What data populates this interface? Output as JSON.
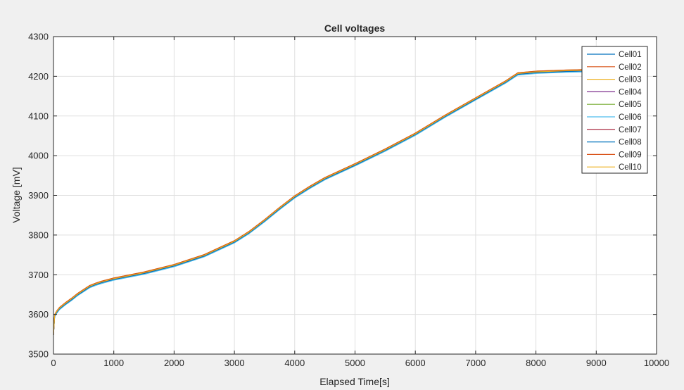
{
  "chart_data": {
    "type": "line",
    "title": "Cell voltages",
    "xlabel": "Elapsed Time[s]",
    "ylabel": "Voltage [mV]",
    "xlim": [
      0,
      10000
    ],
    "ylim": [
      3500,
      4300
    ],
    "xticks": [
      "0",
      "1000",
      "2000",
      "3000",
      "4000",
      "5000",
      "6000",
      "7000",
      "8000",
      "9000",
      "10000"
    ],
    "yticks": [
      "3500",
      "3600",
      "3700",
      "3800",
      "3900",
      "4000",
      "4100",
      "4200",
      "4300"
    ],
    "grid": true,
    "legend_position": "top-right",
    "x": [
      0,
      20,
      50,
      100,
      200,
      300,
      400,
      500,
      600,
      700,
      800,
      1000,
      1500,
      2000,
      2500,
      3000,
      3250,
      3500,
      3750,
      4000,
      4250,
      4500,
      5000,
      5500,
      6000,
      6500,
      7000,
      7500,
      7700,
      8000,
      8500,
      8800
    ],
    "base_values": [
      3548,
      3597,
      3605,
      3615,
      3627,
      3638,
      3650,
      3660,
      3670,
      3676,
      3681,
      3689,
      3704,
      3723,
      3748,
      3783,
      3807,
      3836,
      3867,
      3896,
      3920,
      3942,
      3977,
      4014,
      4054,
      4100,
      4143,
      4186,
      4206,
      4210,
      4213,
      4214
    ],
    "series": [
      {
        "name": "Cell01",
        "color": "#0072bd",
        "offset": -1
      },
      {
        "name": "Cell02",
        "color": "#d95319",
        "offset": 2
      },
      {
        "name": "Cell03",
        "color": "#edb120",
        "offset": 3
      },
      {
        "name": "Cell04",
        "color": "#7e2f8e",
        "offset": 0
      },
      {
        "name": "Cell05",
        "color": "#77ac30",
        "offset": 2
      },
      {
        "name": "Cell06",
        "color": "#4dbeee",
        "offset": -3
      },
      {
        "name": "Cell07",
        "color": "#a2142f",
        "offset": 0
      },
      {
        "name": "Cell08",
        "color": "#0072bd",
        "offset": -1
      },
      {
        "name": "Cell09",
        "color": "#d95319",
        "offset": 3
      },
      {
        "name": "Cell10",
        "color": "#edb120",
        "offset": 1
      }
    ]
  }
}
